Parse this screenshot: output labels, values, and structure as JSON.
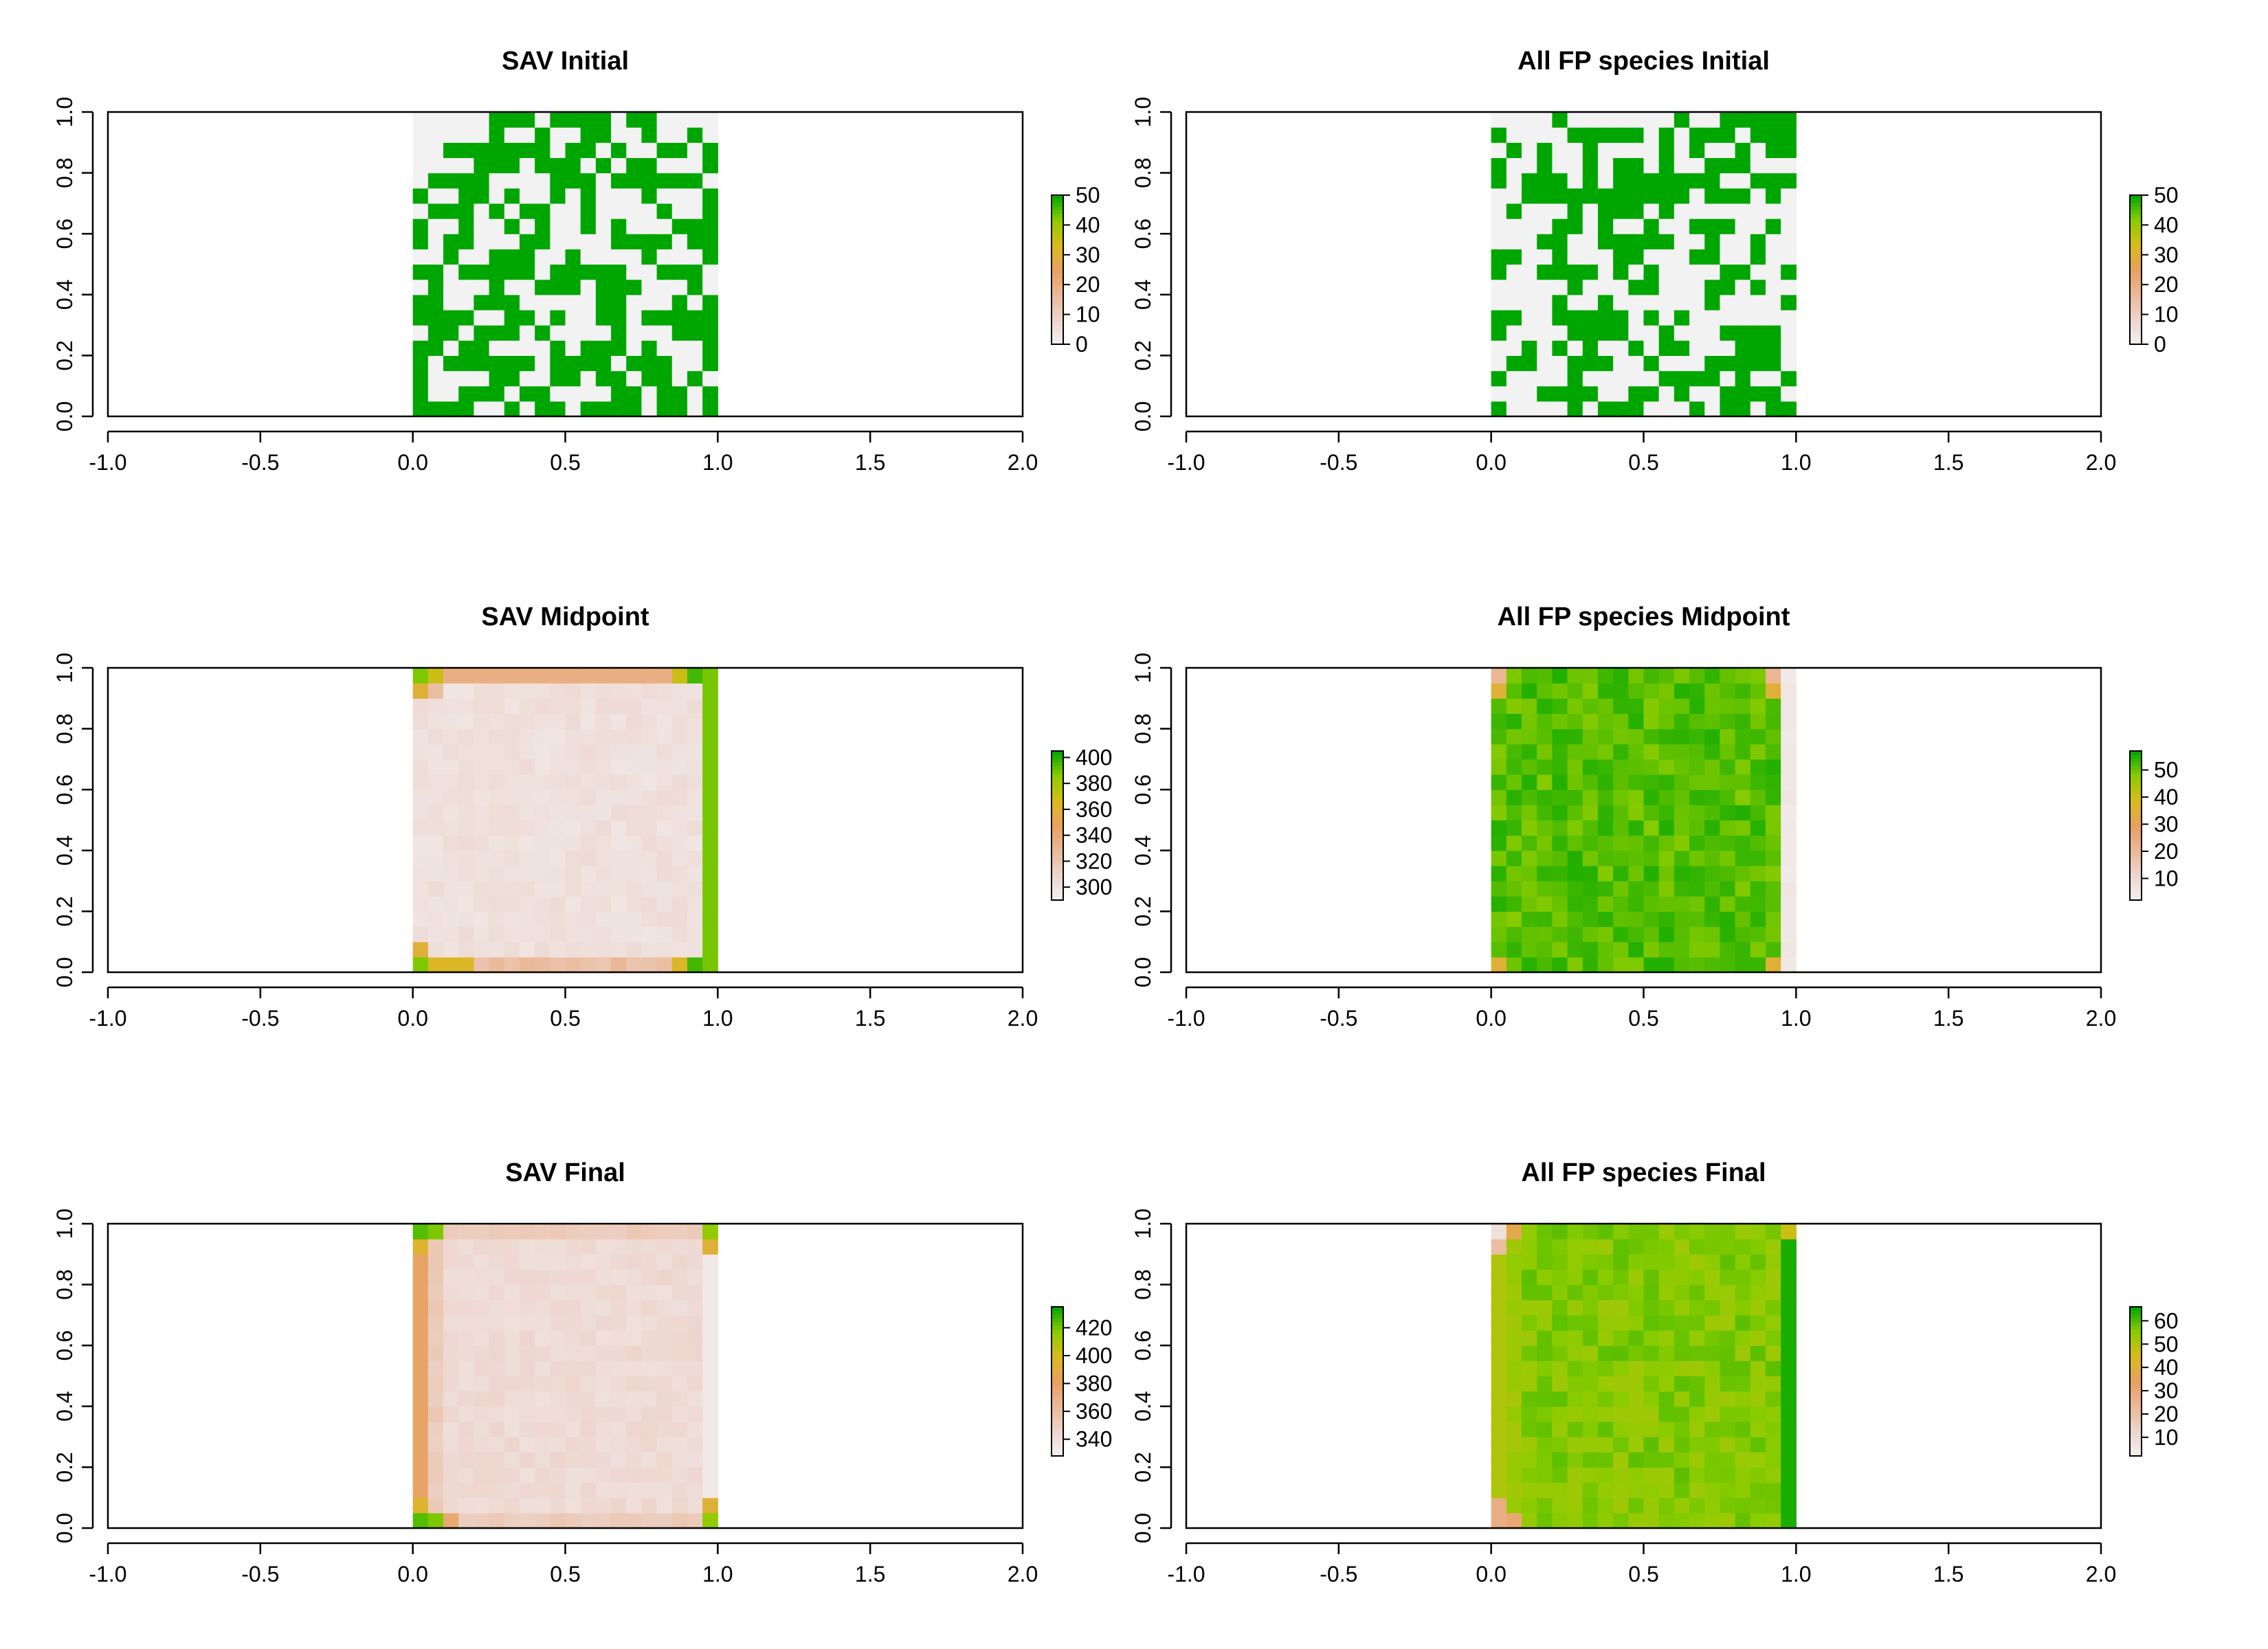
{
  "chart_data": [
    {
      "type": "heatmap",
      "title": "SAV Initial",
      "xlim": [
        -1.0,
        2.0
      ],
      "ylim": [
        0.0,
        1.0
      ],
      "x_ticks": [
        "-1.0",
        "-0.5",
        "0.0",
        "0.5",
        "1.0",
        "1.5",
        "2.0"
      ],
      "y_ticks": [
        "0.0",
        "0.2",
        "0.4",
        "0.6",
        "0.8",
        "1.0"
      ],
      "grid_extent": {
        "x": [
          0.0,
          1.0
        ],
        "y": [
          0.0,
          1.0
        ]
      },
      "grid_size": [
        20,
        20
      ],
      "pattern": "random",
      "fill_fraction": 0.55,
      "seed": 11,
      "legend": {
        "ticks": [
          "0",
          "10",
          "20",
          "30",
          "40",
          "50"
        ],
        "min": 0,
        "max": 50
      }
    },
    {
      "type": "heatmap",
      "title": "All FP species Initial",
      "xlim": [
        -1.0,
        2.0
      ],
      "ylim": [
        0.0,
        1.0
      ],
      "x_ticks": [
        "-1.0",
        "-0.5",
        "0.0",
        "0.5",
        "1.0",
        "1.5",
        "2.0"
      ],
      "y_ticks": [
        "0.0",
        "0.2",
        "0.4",
        "0.6",
        "0.8",
        "1.0"
      ],
      "grid_extent": {
        "x": [
          0.0,
          1.0
        ],
        "y": [
          0.0,
          1.0
        ]
      },
      "grid_size": [
        20,
        20
      ],
      "pattern": "random",
      "fill_fraction": 0.5,
      "seed": 29,
      "legend": {
        "ticks": [
          "0",
          "10",
          "20",
          "30",
          "40",
          "50"
        ],
        "min": 0,
        "max": 50
      }
    },
    {
      "type": "heatmap",
      "title": "SAV Midpoint",
      "xlim": [
        -1.0,
        2.0
      ],
      "ylim": [
        0.0,
        1.0
      ],
      "x_ticks": [
        "-1.0",
        "-0.5",
        "0.0",
        "0.5",
        "1.0",
        "1.5",
        "2.0"
      ],
      "y_ticks": [
        "0.0",
        "0.2",
        "0.4",
        "0.6",
        "0.8",
        "1.0"
      ],
      "grid_extent": {
        "x": [
          0.0,
          1.0
        ],
        "y": [
          0.0,
          1.0
        ]
      },
      "grid_size": [
        20,
        20
      ],
      "pattern": "sav_mid",
      "seed": 5,
      "legend": {
        "ticks": [
          "300",
          "320",
          "340",
          "360",
          "380",
          "400"
        ],
        "min": 290,
        "max": 405
      }
    },
    {
      "type": "heatmap",
      "title": "All FP species Midpoint",
      "xlim": [
        -1.0,
        2.0
      ],
      "ylim": [
        0.0,
        1.0
      ],
      "x_ticks": [
        "-1.0",
        "-0.5",
        "0.0",
        "0.5",
        "1.0",
        "1.5",
        "2.0"
      ],
      "y_ticks": [
        "0.0",
        "0.2",
        "0.4",
        "0.6",
        "0.8",
        "1.0"
      ],
      "grid_extent": {
        "x": [
          0.0,
          1.0
        ],
        "y": [
          0.0,
          1.0
        ]
      },
      "grid_size": [
        20,
        20
      ],
      "pattern": "fp_mid",
      "seed": 7,
      "legend": {
        "ticks": [
          "10",
          "20",
          "30",
          "40",
          "50"
        ],
        "min": 2,
        "max": 57
      }
    },
    {
      "type": "heatmap",
      "title": "SAV Final",
      "xlim": [
        -1.0,
        2.0
      ],
      "ylim": [
        0.0,
        1.0
      ],
      "x_ticks": [
        "-1.0",
        "-0.5",
        "0.0",
        "0.5",
        "1.0",
        "1.5",
        "2.0"
      ],
      "y_ticks": [
        "0.0",
        "0.2",
        "0.4",
        "0.6",
        "0.8",
        "1.0"
      ],
      "grid_extent": {
        "x": [
          0.0,
          1.0
        ],
        "y": [
          0.0,
          1.0
        ]
      },
      "grid_size": [
        20,
        20
      ],
      "pattern": "sav_final",
      "seed": 13,
      "legend": {
        "ticks": [
          "340",
          "360",
          "380",
          "400",
          "420"
        ],
        "min": 328,
        "max": 435
      }
    },
    {
      "type": "heatmap",
      "title": "All FP species Final",
      "xlim": [
        -1.0,
        2.0
      ],
      "ylim": [
        0.0,
        1.0
      ],
      "x_ticks": [
        "-1.0",
        "-0.5",
        "0.0",
        "0.5",
        "1.0",
        "1.5",
        "2.0"
      ],
      "y_ticks": [
        "0.0",
        "0.2",
        "0.4",
        "0.6",
        "0.8",
        "1.0"
      ],
      "grid_extent": {
        "x": [
          0.0,
          1.0
        ],
        "y": [
          0.0,
          1.0
        ]
      },
      "grid_size": [
        20,
        20
      ],
      "pattern": "fp_final",
      "seed": 17,
      "legend": {
        "ticks": [
          "10",
          "20",
          "30",
          "40",
          "50",
          "60"
        ],
        "min": 2,
        "max": 66
      }
    }
  ],
  "colormap": {
    "name": "terrain-like (white to green)",
    "stops": [
      "#f2f2f2",
      "#edd4cc",
      "#eab998",
      "#e8a060",
      "#d9bb1c",
      "#8ccc00",
      "#00a600"
    ]
  }
}
